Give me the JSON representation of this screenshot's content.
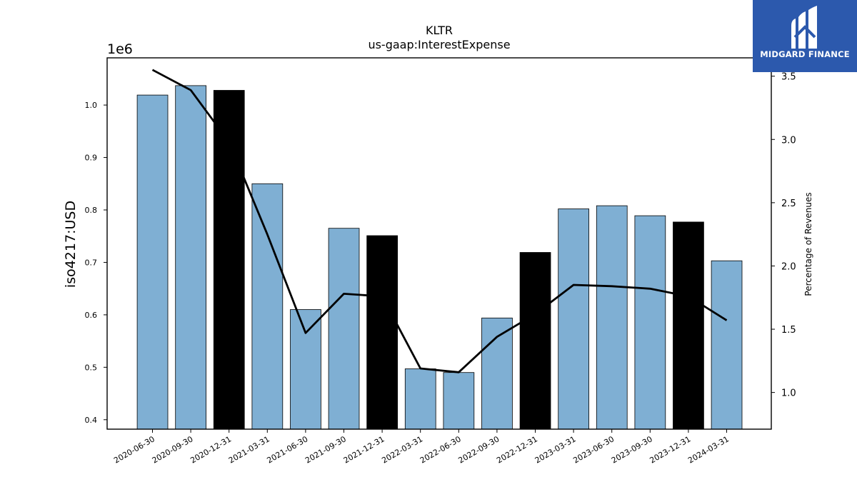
{
  "chart_data": {
    "type": "bar",
    "title": "KLTR",
    "subtitle": "us-gaap:InterestExpense",
    "ylabel": "iso4217:USD",
    "y_multiplier_label": "1e6",
    "y2label": "Percentage of Revenues",
    "ylim": [
      0.382,
      1.09
    ],
    "y2lim": [
      0.71,
      3.645
    ],
    "yticks": [
      "0.4",
      "0.5",
      "0.6",
      "0.7",
      "0.8",
      "0.9",
      "1.0"
    ],
    "y2ticks": [
      "1.0",
      "1.5",
      "2.0",
      "2.5",
      "3.0",
      "3.5"
    ],
    "categories": [
      "2020-06-30",
      "2020-09-30",
      "2020-12-31",
      "2021-03-31",
      "2021-06-30",
      "2021-09-30",
      "2021-12-31",
      "2022-03-31",
      "2022-06-30",
      "2022-09-30",
      "2022-12-31",
      "2023-03-31",
      "2023-06-30",
      "2023-09-30",
      "2023-12-31",
      "2024-03-31"
    ],
    "values": [
      1.019,
      1.037,
      1.028,
      0.85,
      0.61,
      0.765,
      0.751,
      0.497,
      0.49,
      0.594,
      0.719,
      0.802,
      0.808,
      0.789,
      0.777,
      0.703
    ],
    "highlight": [
      false,
      false,
      true,
      false,
      false,
      false,
      true,
      false,
      false,
      false,
      true,
      false,
      false,
      false,
      true,
      false
    ],
    "line_values": [
      3.55,
      3.39,
      2.98,
      2.25,
      1.47,
      1.78,
      1.76,
      1.19,
      1.16,
      1.44,
      1.62,
      1.85,
      1.84,
      1.82,
      1.76,
      1.57
    ],
    "colors": {
      "bar": "#7fafd3",
      "bar_highlight": "#000000",
      "line": "#000000",
      "edge": "#000000"
    },
    "grid": false
  },
  "logo": {
    "text": "MIDGARD FINANCE",
    "bg": "#2c59ad"
  }
}
